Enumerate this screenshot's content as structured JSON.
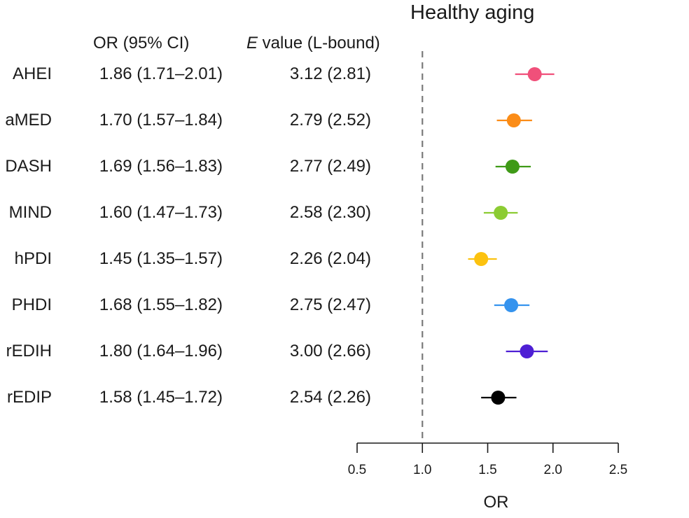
{
  "chart_data": {
    "type": "forest",
    "title": "Healthy aging",
    "column_headers": {
      "or_ci": "OR (95% CI)",
      "evalue_italic": "E",
      "evalue_rest": " value (L-bound)"
    },
    "xlabel": "OR",
    "xlim": [
      0.5,
      2.5
    ],
    "xticks": [
      0.5,
      1.0,
      1.5,
      2.0,
      2.5
    ],
    "xtick_labels": [
      "0.5",
      "1.0",
      "1.5",
      "2.0",
      "2.5"
    ],
    "reference_line": 1.0,
    "rows": [
      {
        "label": "AHEI",
        "or_text": "1.86 (1.71–2.01)",
        "evalue_text": "3.12 (2.81)",
        "or": 1.86,
        "lo": 1.71,
        "hi": 2.01,
        "color": "#f0507a"
      },
      {
        "label": "aMED",
        "or_text": "1.70 (1.57–1.84)",
        "evalue_text": "2.79 (2.52)",
        "or": 1.7,
        "lo": 1.57,
        "hi": 1.84,
        "color": "#fb8c17"
      },
      {
        "label": "DASH",
        "or_text": "1.69 (1.56–1.83)",
        "evalue_text": "2.77 (2.49)",
        "or": 1.69,
        "lo": 1.56,
        "hi": 1.83,
        "color": "#3f9a17"
      },
      {
        "label": "MIND",
        "or_text": "1.60 (1.47–1.73)",
        "evalue_text": "2.58 (2.30)",
        "or": 1.6,
        "lo": 1.47,
        "hi": 1.73,
        "color": "#8ccc33"
      },
      {
        "label": "hPDI",
        "or_text": "1.45 (1.35–1.57)",
        "evalue_text": "2.26 (2.04)",
        "or": 1.45,
        "lo": 1.35,
        "hi": 1.57,
        "color": "#fcc20f"
      },
      {
        "label": "PHDI",
        "or_text": "1.68 (1.55–1.82)",
        "evalue_text": "2.75 (2.47)",
        "or": 1.68,
        "lo": 1.55,
        "hi": 1.82,
        "color": "#3593ee"
      },
      {
        "label": "rEDIH",
        "or_text": "1.80 (1.64–1.96)",
        "evalue_text": "3.00 (2.66)",
        "or": 1.8,
        "lo": 1.64,
        "hi": 1.96,
        "color": "#4e1fd4"
      },
      {
        "label": "rEDIP",
        "or_text": "1.58 (1.45–1.72)",
        "evalue_text": "2.54 (2.26)",
        "or": 1.58,
        "lo": 1.45,
        "hi": 1.72,
        "color": "#000000"
      }
    ]
  }
}
